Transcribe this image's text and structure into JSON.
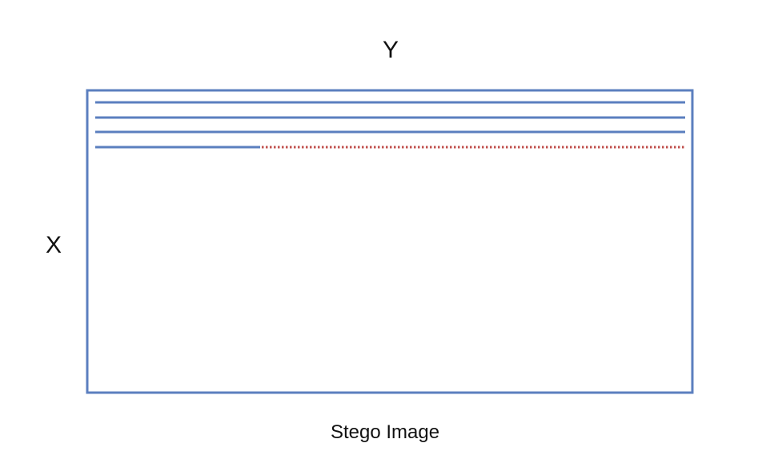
{
  "diagram": {
    "top_label": "Y",
    "left_label": "X",
    "caption": "Stego Image"
  },
  "colors": {
    "frame": "#5b7fbf",
    "row_line": "#5b7fbf",
    "dotted_remainder": "#c0504d",
    "text": "#111111"
  },
  "rows": {
    "full_rows": 3,
    "partial_row_fraction_filled": 0.28
  }
}
